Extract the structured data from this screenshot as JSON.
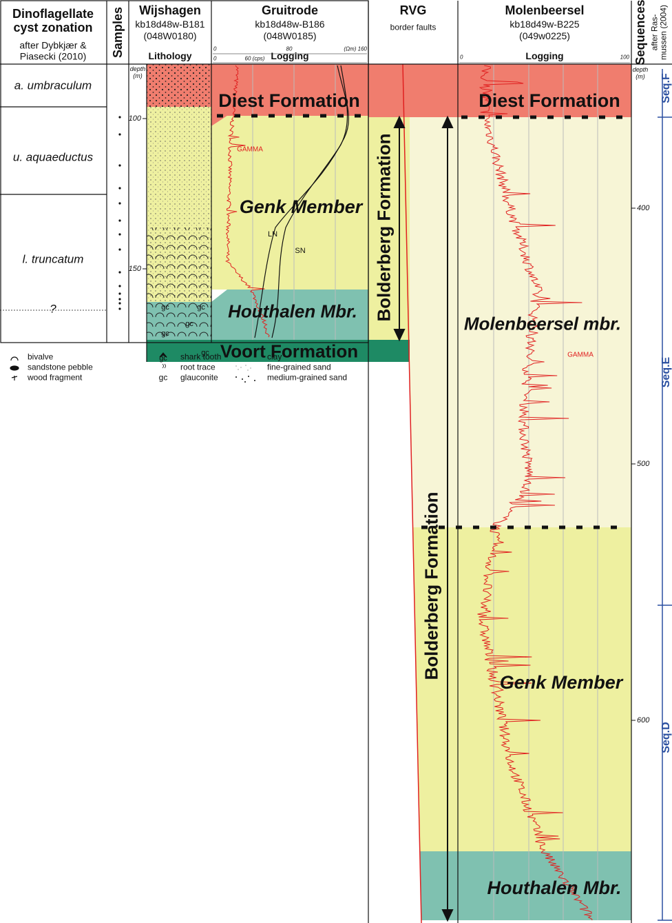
{
  "headers": [
    {
      "title": "Dinoflagellate cyst zonation",
      "note": "after Dybkjær & Piasecki (2010)"
    },
    {
      "title": "Samples"
    },
    {
      "title": "Wijshagen",
      "lines": [
        "kb18d48w-B181",
        "(048W0180)"
      ],
      "sub": "Lithology"
    },
    {
      "title": "Gruitrode",
      "lines": [
        "kb18d48w-B186",
        "(048W0185)"
      ],
      "sub": "Logging"
    },
    {
      "title": "RVG",
      "note": "border faults"
    },
    {
      "title": "Molenbeersel",
      "lines": [
        "kb18d49w-B225",
        "(049w0225)"
      ],
      "sub": "Logging"
    },
    {
      "title": "Sequences",
      "note": "after Ras-mussen (2004)"
    }
  ],
  "zones": [
    "a. umbraculum",
    "u. aquaeductus",
    "l. truncatum",
    "?"
  ],
  "wijshagen": {
    "depth_label": "depth (m)",
    "ticks": [
      "100",
      "150"
    ],
    "glauconite_mark": "gc"
  },
  "gruitrode": {
    "scale_top": [
      "0",
      "80",
      "(Ωm) 160"
    ],
    "scale_bottom": [
      "0",
      "60 (cps)"
    ],
    "formations": [
      "Diest Formation",
      "Genk Member",
      "Houthalen Mbr.",
      "Voort Formation"
    ],
    "curves": [
      "GAMMA",
      "LN",
      "SN"
    ]
  },
  "rvg": {
    "formations": [
      "Bolderberg Formation",
      "Bolderberg Formation"
    ]
  },
  "molenbeersel": {
    "scale": [
      "0",
      "100"
    ],
    "formations": [
      "Diest Formation",
      "Molenbeersel mbr.",
      "Genk Member",
      "Houthalen Mbr."
    ],
    "curve": "GAMMA",
    "depth_label": "depth (m)",
    "ticks": [
      "400",
      "500",
      "600"
    ]
  },
  "sequences": [
    "Seq.F",
    "Seq.E",
    "Seq.D"
  ],
  "legend": [
    [
      {
        "label": "bivalve"
      },
      {
        "label": "sandstone pebble"
      },
      {
        "label": "wood fragment"
      }
    ],
    [
      {
        "label": "shark tooth"
      },
      {
        "label": "root trace"
      },
      {
        "symbol": "gc",
        "label": "glauconite"
      }
    ],
    [
      {
        "label": "clay"
      },
      {
        "label": "fine-grained sand"
      },
      {
        "label": "medium-grained sand"
      }
    ]
  ]
}
